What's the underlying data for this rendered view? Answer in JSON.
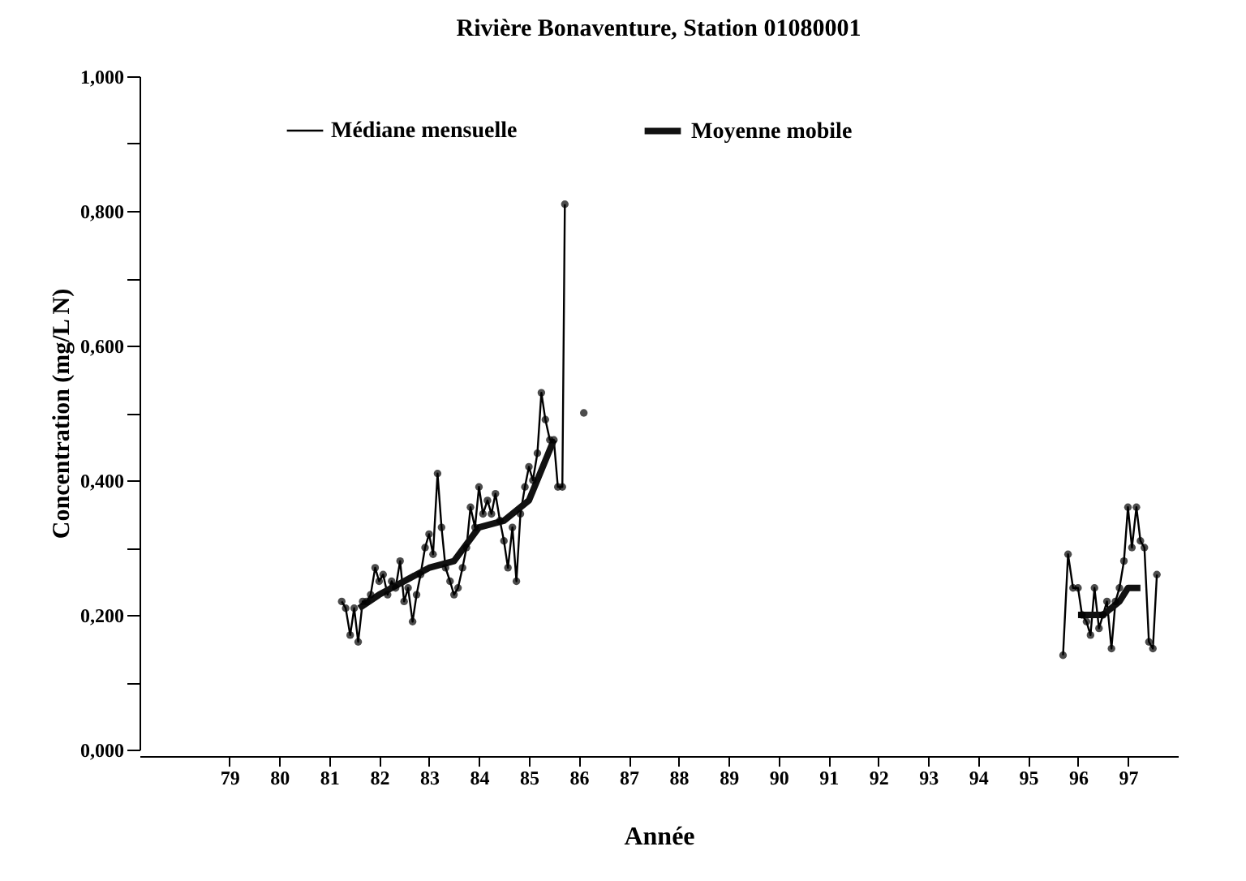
{
  "chart_data": {
    "type": "line",
    "title": "Rivière Bonaventure, Station 01080001",
    "xlabel": "Année",
    "ylabel": "Concentration  (mg/L N)",
    "xlim": [
      77.2,
      98
    ],
    "xticks": [
      79,
      80,
      81,
      82,
      83,
      84,
      85,
      86,
      87,
      88,
      89,
      90,
      91,
      92,
      93,
      94,
      95,
      96,
      97
    ],
    "ylim": [
      0,
      1
    ],
    "yticks": [
      {
        "value": 0,
        "label": "0,000"
      },
      {
        "value": 0.1,
        "label": null
      },
      {
        "value": 0.2,
        "label": "0,200"
      },
      {
        "value": 0.3,
        "label": null
      },
      {
        "value": 0.4,
        "label": "0,400"
      },
      {
        "value": 0.5,
        "label": null
      },
      {
        "value": 0.6,
        "label": "0,600"
      },
      {
        "value": 0.7,
        "label": null
      },
      {
        "value": 0.8,
        "label": "0,800"
      },
      {
        "value": 0.9,
        "label": null
      },
      {
        "value": 1,
        "label": "1,000"
      }
    ],
    "grid": false,
    "legend": "top",
    "line_style": "solid",
    "series": [
      {
        "name": "Médiane mensuelle",
        "color": "#000000",
        "marker": "circle",
        "x": [
          81.25,
          81.33,
          81.42,
          81.5,
          81.58,
          81.67,
          81.75,
          81.83,
          81.92,
          82.0,
          82.08,
          82.17,
          82.25,
          82.33,
          82.42,
          82.5,
          82.58,
          82.67,
          82.75,
          82.83,
          82.92,
          83.0,
          83.08,
          83.17,
          83.25,
          83.33,
          83.42,
          83.5,
          83.58,
          83.67,
          83.75,
          83.83,
          83.92,
          84.0,
          84.08,
          84.17,
          84.25,
          84.33,
          84.42,
          84.5,
          84.58,
          84.67,
          84.75,
          84.83,
          84.92,
          85.0,
          85.08,
          85.17,
          85.25,
          85.33,
          85.42,
          85.5,
          85.58,
          85.67,
          85.72,
          85.9,
          86.1,
          90,
          95.7,
          95.8,
          95.9,
          96.0,
          96.08,
          96.17,
          96.25,
          96.33,
          96.42,
          96.5,
          96.58,
          96.67,
          96.75,
          96.83,
          96.92,
          97.0,
          97.08,
          97.17,
          97.25,
          97.33,
          97.42,
          97.5,
          97.58
        ],
        "values": [
          0.22,
          0.21,
          0.17,
          0.21,
          0.16,
          0.22,
          0.22,
          0.23,
          0.27,
          0.25,
          0.26,
          0.23,
          0.25,
          0.24,
          0.28,
          0.22,
          0.24,
          0.19,
          0.23,
          0.26,
          0.3,
          0.32,
          0.29,
          0.41,
          0.33,
          0.27,
          0.25,
          0.23,
          0.24,
          0.27,
          0.3,
          0.36,
          0.33,
          0.39,
          0.35,
          0.37,
          0.35,
          0.38,
          0.34,
          0.31,
          0.27,
          0.33,
          0.25,
          0.35,
          0.39,
          0.42,
          0.4,
          0.44,
          0.53,
          0.49,
          0.46,
          0.46,
          0.39,
          0.39,
          0.81,
          null,
          0.5,
          null,
          0.14,
          0.29,
          0.24,
          0.24,
          0.2,
          0.19,
          0.17,
          0.24,
          0.18,
          0.2,
          0.22,
          0.15,
          0.22,
          0.24,
          0.28,
          0.36,
          0.3,
          0.36,
          0.31,
          0.3,
          0.16,
          0.15,
          0.26
        ]
      },
      {
        "name": "Moyenne mobile",
        "color": "#111111",
        "marker": "none",
        "x": [
          81.6,
          82.0,
          82.5,
          83.0,
          83.5,
          84.0,
          84.5,
          85.0,
          85.5,
          90,
          96.0,
          96.5,
          96.83,
          97.0,
          97.25
        ],
        "values": [
          0.21,
          0.23,
          0.25,
          0.27,
          0.28,
          0.33,
          0.34,
          0.37,
          0.46,
          null,
          0.2,
          0.2,
          0.22,
          0.24,
          0.24
        ]
      }
    ]
  }
}
